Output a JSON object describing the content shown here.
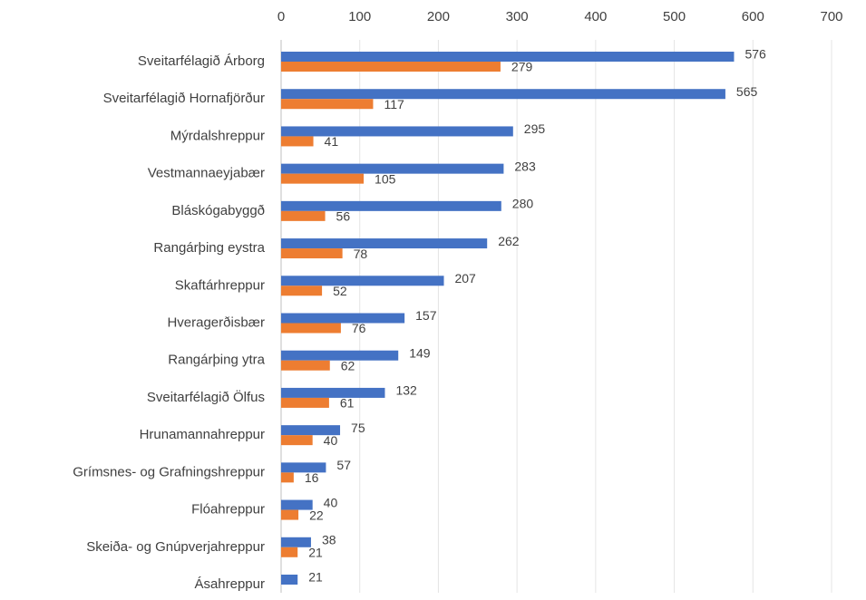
{
  "chart_data": {
    "type": "bar",
    "orientation": "horizontal",
    "categories": [
      "Sveitarfélagið Árborg",
      "Sveitarfélagið Hornafjörður",
      "Mýrdalshreppur",
      "Vestmannaeyjabær",
      "Bláskógabyggð",
      "Rangárþing eystra",
      "Skaftárhreppur",
      "Hveragerðisbær",
      "Rangárþing ytra",
      "Sveitarfélagið Ölfus",
      "Hrunamannahreppur",
      "Grímsnes- og Grafningshreppur",
      "Flóahreppur",
      "Skeiða- og Gnúpverjahreppur",
      "Ásahreppur"
    ],
    "series": [
      {
        "color": "#4472c4",
        "values": [
          576,
          565,
          295,
          283,
          280,
          262,
          207,
          157,
          149,
          132,
          75,
          57,
          40,
          38,
          21
        ]
      },
      {
        "color": "#ed7d31",
        "values": [
          279,
          117,
          41,
          105,
          56,
          78,
          52,
          76,
          62,
          61,
          40,
          16,
          22,
          21,
          null
        ]
      }
    ],
    "xlim": [
      0,
      700
    ],
    "xticks": [
      0,
      100,
      200,
      300,
      400,
      500,
      600,
      700
    ],
    "grid": true
  }
}
